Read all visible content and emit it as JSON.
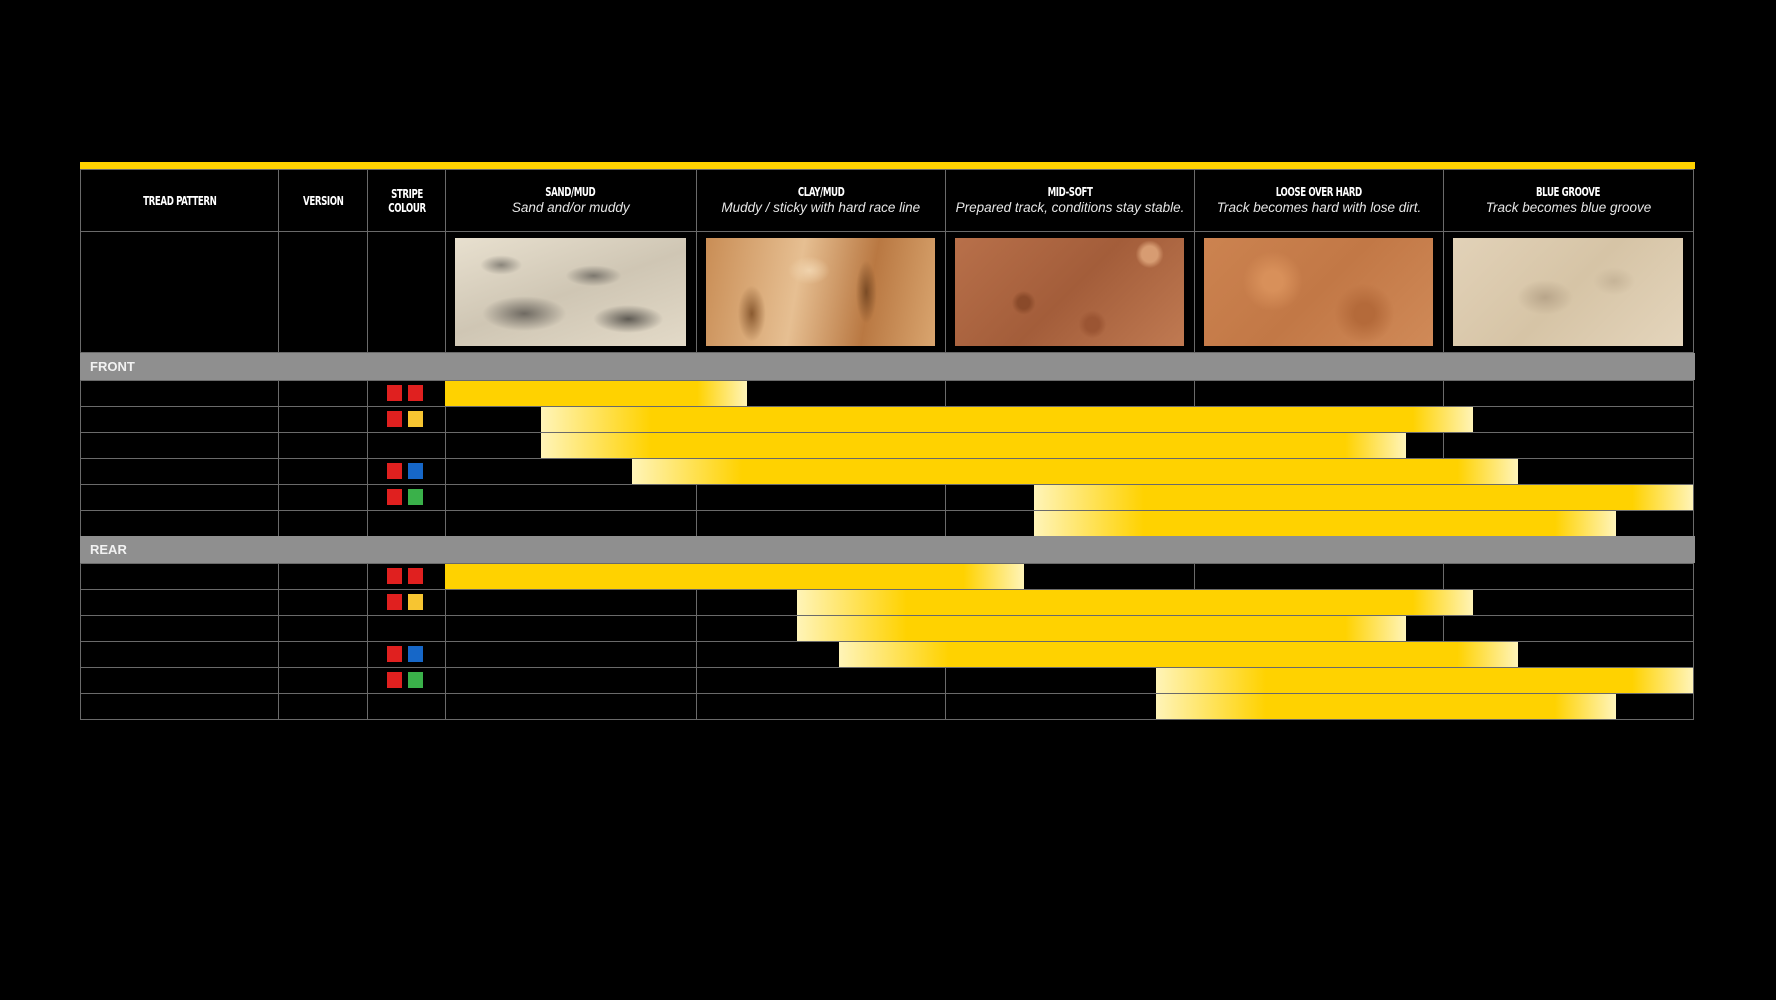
{
  "accent_color": "#ffd200",
  "bar_color": "#ffd200",
  "bar_fade_color": "#fff4b8",
  "band_color": "#8f8f8f",
  "columns": [
    {
      "title": "TREAD PATTERN",
      "subtitle": ""
    },
    {
      "title": "VERSION",
      "subtitle": ""
    },
    {
      "title": "STRIPE COLOUR",
      "subtitle": ""
    },
    {
      "title": "SAND/MUD",
      "subtitle": "Sand and/or muddy",
      "image": "sand-texture"
    },
    {
      "title": "CLAY/MUD",
      "subtitle": "Muddy / sticky with hard race line",
      "image": "clay-texture"
    },
    {
      "title": "MID-SOFT",
      "subtitle": "Prepared track, conditions stay stable.",
      "image": "mid-soft-dirt-texture"
    },
    {
      "title": "LOOSE OVER HARD",
      "subtitle": "Track becomes hard with lose dirt.",
      "image": "loose-dirt-texture"
    },
    {
      "title": "BLUE GROOVE",
      "subtitle": "Track becomes blue groove",
      "image": "blue-groove-texture"
    }
  ],
  "stripe_colors": {
    "red": "#e0201f",
    "yellow": "#f7c531",
    "blue": "#1667c8",
    "green": "#3ab14a"
  },
  "sections": [
    {
      "label": "FRONT",
      "rows": [
        {
          "stripes": [
            "red",
            "red"
          ],
          "range": [
            0,
            1.21
          ]
        },
        {
          "stripes": [
            "red",
            "yellow"
          ],
          "range": [
            0.385,
            4.12
          ]
        },
        {
          "stripes": [],
          "range": [
            0.385,
            3.85
          ]
        },
        {
          "stripes": [
            "red",
            "blue"
          ],
          "range": [
            0.75,
            4.3
          ]
        },
        {
          "stripes": [
            "red",
            "green"
          ],
          "range": [
            2.36,
            5.0
          ]
        },
        {
          "stripes": [],
          "range": [
            2.36,
            4.69
          ]
        }
      ]
    },
    {
      "label": "REAR",
      "rows": [
        {
          "stripes": [
            "red",
            "red"
          ],
          "range": [
            0,
            2.32
          ]
        },
        {
          "stripes": [
            "red",
            "yellow"
          ],
          "range": [
            1.41,
            4.12
          ]
        },
        {
          "stripes": [],
          "range": [
            1.41,
            3.85
          ]
        },
        {
          "stripes": [
            "red",
            "blue"
          ],
          "range": [
            1.58,
            4.3
          ]
        },
        {
          "stripes": [
            "red",
            "green"
          ],
          "range": [
            2.85,
            5.0
          ]
        },
        {
          "stripes": [],
          "range": [
            2.85,
            4.69
          ]
        }
      ]
    }
  ]
}
